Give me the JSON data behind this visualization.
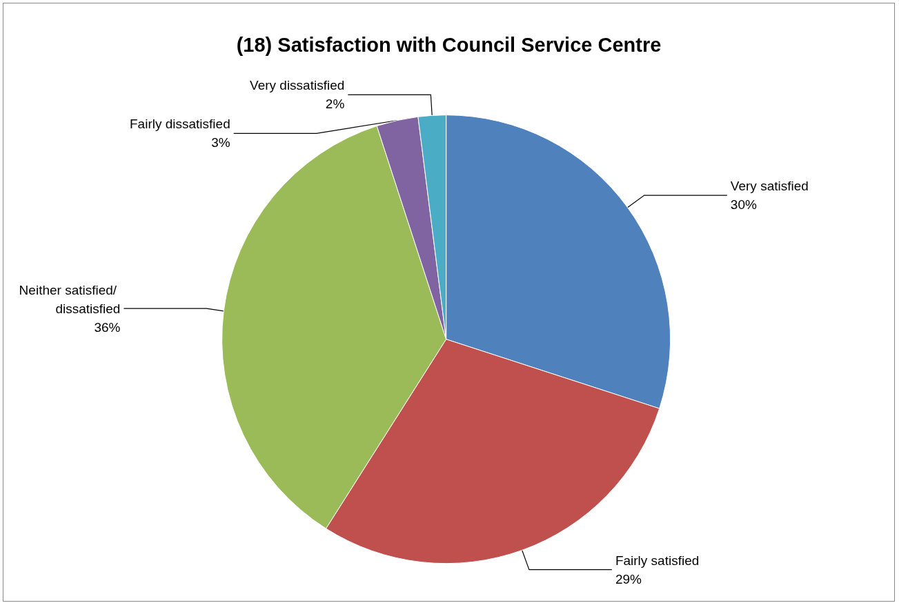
{
  "chart_data": {
    "type": "pie",
    "title": "(18) Satisfaction with Council Service Centre",
    "categories": [
      "Very satisfied",
      "Fairly satisfied",
      "Neither satisfied/ dissatisfied",
      "Fairly dissatisfied",
      "Very dissatisfied"
    ],
    "values": [
      30,
      29,
      36,
      3,
      2
    ],
    "colors": [
      "#4f81bd",
      "#c0504d",
      "#9bbb59",
      "#8064a2",
      "#4bacc6"
    ],
    "value_labels": [
      "30%",
      "29%",
      "36%",
      "3%",
      "2%"
    ],
    "legend": false
  }
}
